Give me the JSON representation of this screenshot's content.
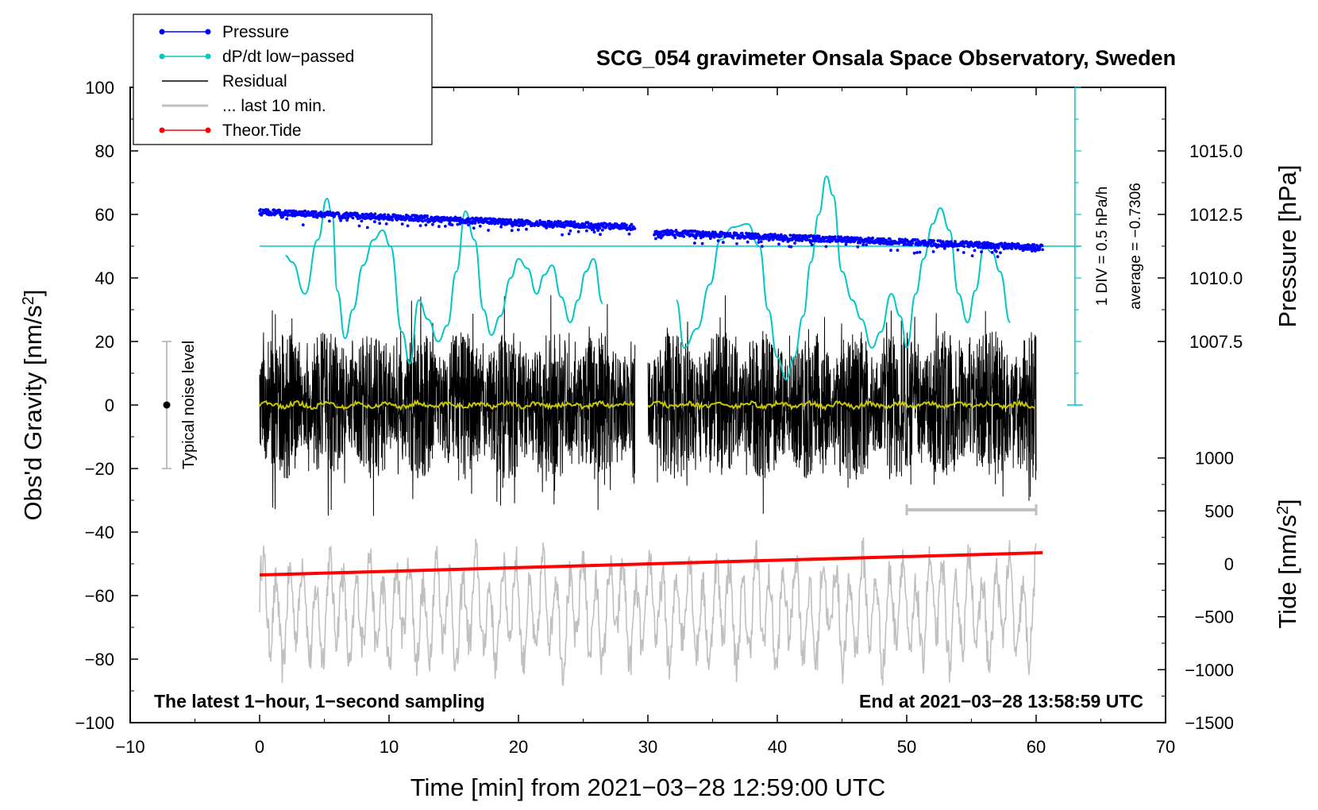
{
  "chart_data": {
    "type": "line",
    "title": "SCG_054 gravimeter Onsala Space Observatory, Sweden",
    "xlabel": "Time [min] from 2021−03−28 12:59:00 UTC",
    "ylabel_left": "Obs'd Gravity [nm/s",
    "ylabel_left_sup": "2",
    "ylabel_left_end": "]",
    "ylabel_pressure": "Pressure [hPa]",
    "ylabel_tide": "Tide [nm/s",
    "ylabel_tide_sup": "2",
    "ylabel_tide_end": "]",
    "xlim": [
      -10,
      70
    ],
    "ylim": [
      -100,
      100
    ],
    "x_ticks": [
      "−10",
      "0",
      "10",
      "20",
      "30",
      "40",
      "50",
      "60",
      "70"
    ],
    "y_ticks": [
      "−100",
      "−80",
      "−60",
      "−40",
      "−20",
      "0",
      "20",
      "40",
      "60",
      "80",
      "100"
    ],
    "pressure_ticks": [
      "1015.0",
      "1012.5",
      "1010.0",
      "1007.5"
    ],
    "tide_ticks": [
      "1000",
      "500",
      "0",
      "−500",
      "−1000",
      "−1500"
    ],
    "bottom_left_note": "The latest 1−hour, 1−second sampling",
    "bottom_right_note": "End at 2021−03−28 13:58:59 UTC",
    "noise_label": "Typical noise level",
    "noise_range": [
      -20,
      20
    ],
    "ddt_scale_label": "1 DIV = 0.5 hPa/h",
    "ddt_average_label": "average = −0.7306",
    "legend": [
      {
        "label": "Pressure",
        "color": "#0000ff"
      },
      {
        "label": "dP/dt low−passed",
        "color": "#00c8c8"
      },
      {
        "label": "Residual",
        "color": "#000000"
      },
      {
        "label": "... last 10 min.",
        "color": "#c0c0c0"
      },
      {
        "label": "Theor.Tide",
        "color": "#ff0000"
      }
    ],
    "series": [
      {
        "name": "Pressure",
        "color": "#0000ff",
        "unit": "hPa",
        "segments": [
          [
            0,
            29,
            1012.6,
            1012.0
          ],
          [
            30.5,
            60.5,
            1011.8,
            1011.2
          ]
        ]
      },
      {
        "name": "dP/dt low−passed",
        "color": "#00c8c8",
        "unit": "nm/s2 axis",
        "points": [
          [
            2,
            47
          ],
          [
            2.5,
            45
          ],
          [
            3.5,
            35
          ],
          [
            4.5,
            52
          ],
          [
            5.2,
            65
          ],
          [
            5.6,
            60
          ],
          [
            6,
            36
          ],
          [
            6.6,
            21
          ],
          [
            7.2,
            30
          ],
          [
            8,
            44
          ],
          [
            8.8,
            52
          ],
          [
            9.5,
            55
          ],
          [
            10.1,
            50
          ],
          [
            11,
            23
          ],
          [
            11.6,
            13
          ],
          [
            12.3,
            33
          ],
          [
            13,
            27
          ],
          [
            13.8,
            20
          ],
          [
            14.5,
            25
          ],
          [
            15.2,
            42
          ],
          [
            15.9,
            61
          ],
          [
            16.6,
            52
          ],
          [
            17.3,
            30
          ],
          [
            17.9,
            22
          ],
          [
            18.6,
            28
          ],
          [
            19.4,
            40
          ],
          [
            20,
            46
          ],
          [
            20.7,
            43
          ],
          [
            21.4,
            35
          ],
          [
            22,
            41
          ],
          [
            22.6,
            44
          ],
          [
            23.3,
            34
          ],
          [
            24,
            26
          ],
          [
            24.6,
            33
          ],
          [
            25.2,
            42
          ],
          [
            25.8,
            46
          ],
          [
            26.5,
            32
          ]
        ]
      },
      {
        "name": "dP/dt low−passed (part 2)",
        "color": "#00c8c8",
        "unit": "nm/s2 axis",
        "points": [
          [
            32.2,
            33
          ],
          [
            32.8,
            18
          ],
          [
            33.8,
            24
          ],
          [
            34.8,
            38
          ],
          [
            35.6,
            52
          ],
          [
            36.6,
            56
          ],
          [
            37.7,
            57
          ],
          [
            38.6,
            50
          ],
          [
            39.3,
            30
          ],
          [
            40,
            15
          ],
          [
            40.7,
            8
          ],
          [
            41.3,
            15
          ],
          [
            42,
            28
          ],
          [
            42.6,
            45
          ],
          [
            43.2,
            60
          ],
          [
            43.8,
            72
          ],
          [
            44.3,
            66
          ],
          [
            45,
            42
          ],
          [
            45.8,
            33
          ],
          [
            46.5,
            27
          ],
          [
            47.3,
            18
          ],
          [
            48,
            23
          ],
          [
            48.8,
            35
          ],
          [
            49.5,
            28
          ],
          [
            50,
            18
          ],
          [
            50.7,
            35
          ],
          [
            51.3,
            46
          ],
          [
            52,
            57
          ],
          [
            52.6,
            62
          ],
          [
            53.3,
            55
          ],
          [
            54,
            35
          ],
          [
            54.7,
            26
          ],
          [
            55.3,
            36
          ],
          [
            56,
            50
          ],
          [
            56.6,
            48
          ],
          [
            57.2,
            42
          ],
          [
            58,
            26
          ]
        ]
      },
      {
        "name": "Residual",
        "color": "#000000",
        "unit": "nm/s2",
        "segments": [
          [
            0,
            29
          ],
          [
            30,
            60
          ]
        ],
        "amplitude": 24
      },
      {
        "name": "... last 10 min.",
        "color": "#c0c0c0",
        "unit": "nm/s2",
        "range": [
          0,
          60
        ],
        "center": -65,
        "amplitude": 18
      },
      {
        "name": "Theor.Tide",
        "color": "#ff0000",
        "unit": "nm/s2",
        "points": [
          [
            0,
            -53.5
          ],
          [
            60.5,
            -46.5
          ]
        ]
      },
      {
        "name": "Residual smoothed",
        "color": "#c8c800",
        "unit": "nm/s2",
        "segments": [
          [
            0,
            29
          ],
          [
            30,
            60
          ]
        ]
      }
    ]
  }
}
